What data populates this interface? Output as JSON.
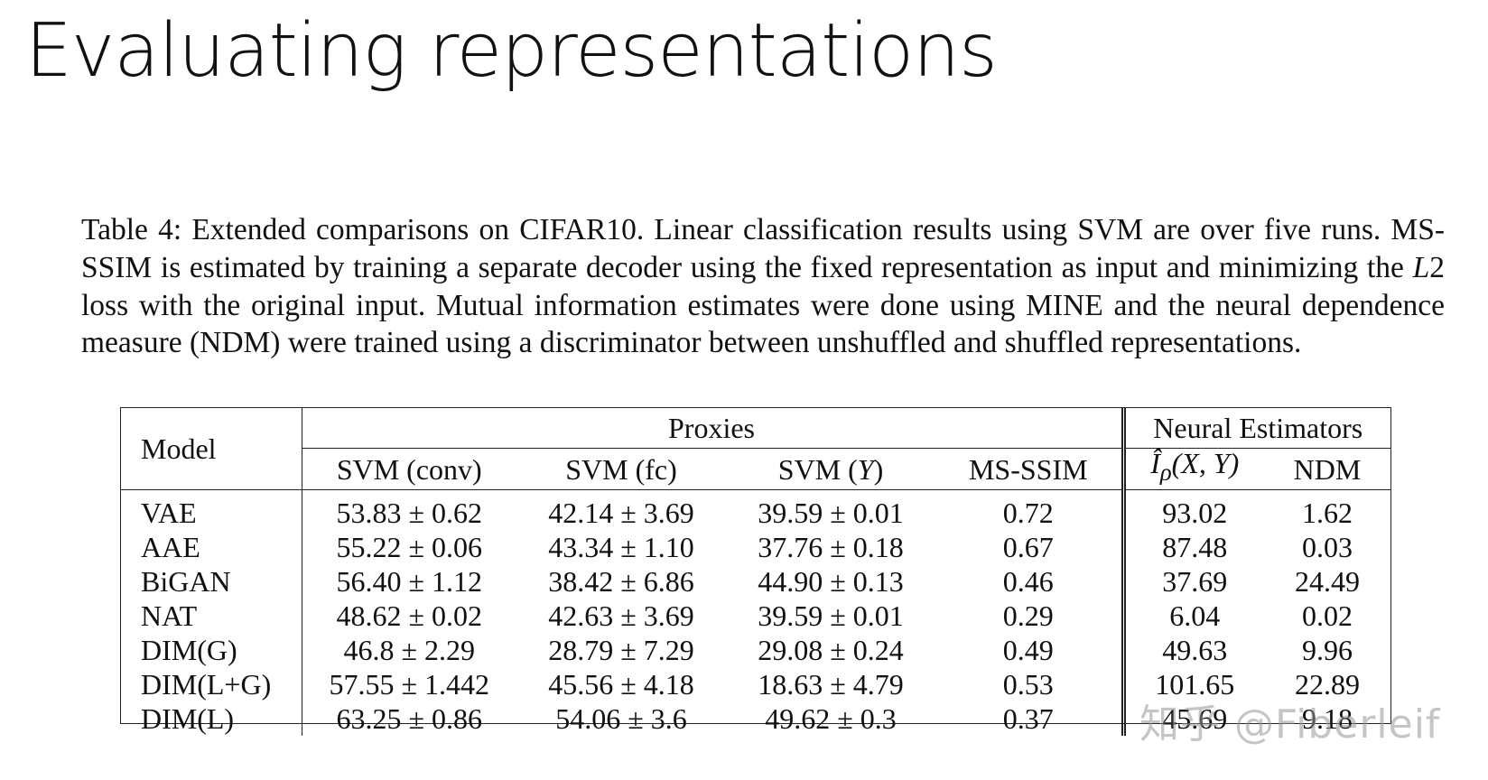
{
  "slide": {
    "title": "Evaluating representations"
  },
  "caption": {
    "part1": "Table 4: Extended comparisons on CIFAR10. Linear classification results using SVM are over five runs. MS-SSIM is estimated by training a separate decoder using the fixed representation as input and minimizing the ",
    "math": "L",
    "math_num": "2",
    "part2": " loss with the original input. Mutual information estimates were done using MINE and the neural dependence measure (NDM) were trained using a discriminator between unshuffled and shuffled representations."
  },
  "table": {
    "model_header": "Model",
    "group_proxies": "Proxies",
    "group_neural": "Neural Estimators",
    "columns": {
      "svm_conv": "SVM (conv)",
      "svm_fc": "SVM (fc)",
      "svm_y_prefix": "SVM (",
      "svm_y_var": "Y",
      "svm_y_suffix": ")",
      "ms_ssim": "MS-SSIM",
      "ip_symbol": "Î",
      "ip_sub": "ρ",
      "ip_args": "(X, Y)",
      "ndm": "NDM"
    },
    "rows": [
      {
        "model": "VAE",
        "svm_conv": "53.83 ± 0.62",
        "svm_fc": "42.14 ± 3.69",
        "svm_y": "39.59 ± 0.01",
        "ms_ssim": "0.72",
        "ip": "93.02",
        "ndm": "1.62"
      },
      {
        "model": "AAE",
        "svm_conv": "55.22 ± 0.06",
        "svm_fc": "43.34 ± 1.10",
        "svm_y": "37.76 ± 0.18",
        "ms_ssim": "0.67",
        "ip": "87.48",
        "ndm": "0.03"
      },
      {
        "model": "BiGAN",
        "svm_conv": "56.40 ± 1.12",
        "svm_fc": "38.42 ± 6.86",
        "svm_y": "44.90 ± 0.13",
        "ms_ssim": "0.46",
        "ip": "37.69",
        "ndm": "24.49"
      },
      {
        "model": "NAT",
        "svm_conv": "48.62 ± 0.02",
        "svm_fc": "42.63 ± 3.69",
        "svm_y": "39.59 ± 0.01",
        "ms_ssim": "0.29",
        "ip": "6.04",
        "ndm": "0.02"
      },
      {
        "model": "DIM(G)",
        "svm_conv": "46.8 ± 2.29",
        "svm_fc": "28.79 ± 7.29",
        "svm_y": "29.08 ± 0.24",
        "ms_ssim": "0.49",
        "ip": "49.63",
        "ndm": "9.96"
      },
      {
        "model": "DIM(L+G)",
        "svm_conv": "57.55 ± 1.442",
        "svm_fc": "45.56 ± 4.18",
        "svm_y": "18.63 ± 4.79",
        "ms_ssim": "0.53",
        "ip": "101.65",
        "ndm": "22.89"
      },
      {
        "model": "DIM(L)",
        "svm_conv": "63.25 ± 0.86",
        "svm_fc": "54.06 ± 3.6",
        "svm_y": "49.62 ± 0.3",
        "ms_ssim": "0.37",
        "ip": "45.69",
        "ndm": "9.18"
      }
    ]
  },
  "watermark": {
    "text": "知乎 @Fiberleif"
  }
}
